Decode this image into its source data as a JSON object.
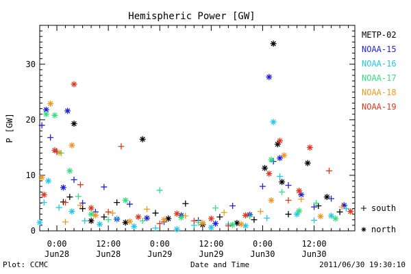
{
  "chart_data": {
    "type": "scatter",
    "title": "Hemispheric Power [GW]",
    "xlabel": "Date and Time",
    "ylabel": "P [GW]",
    "ylim": [
      0,
      37
    ],
    "yticks": [
      0,
      10,
      20,
      30
    ],
    "xlim": [
      "2011-06-27T20:00",
      "2011-06-30T21:30"
    ],
    "xticks": [
      {
        "t": "2011-06-28T00:00",
        "time": "0:00",
        "date": "Jun28"
      },
      {
        "t": "2011-06-28T12:00",
        "time": "12:00",
        "date": "Jun28"
      },
      {
        "t": "2011-06-29T00:00",
        "time": "0:00",
        "date": "Jun29"
      },
      {
        "t": "2011-06-29T12:00",
        "time": "12:00",
        "date": "Jun29"
      },
      {
        "t": "2011-06-30T00:00",
        "time": "0:00",
        "date": "Jun30"
      },
      {
        "t": "2011-06-30T12:00",
        "time": "12:00",
        "date": "Jun30"
      }
    ],
    "legend_placement": "right",
    "markers": [
      {
        "symbol": "+",
        "label": "south"
      },
      {
        "symbol": "*",
        "label": "north"
      }
    ],
    "series": [
      {
        "name": "METP-02",
        "color": "#000000",
        "points": [
          [
            "2011-06-28T01:30",
            5.2,
            "+"
          ],
          [
            "2011-06-28T03:00",
            6.1,
            "+"
          ],
          [
            "2011-06-28T04:00",
            19.3,
            "*"
          ],
          [
            "2011-06-28T06:00",
            4.0,
            "+"
          ],
          [
            "2011-06-28T08:00",
            1.8,
            "*"
          ],
          [
            "2011-06-28T11:00",
            2.5,
            "+"
          ],
          [
            "2011-06-28T14:00",
            5.1,
            "+"
          ],
          [
            "2011-06-28T16:00",
            1.5,
            "*"
          ],
          [
            "2011-06-28T20:00",
            16.5,
            "*"
          ],
          [
            "2011-06-28T23:00",
            3.2,
            "+"
          ],
          [
            "2011-06-29T02:00",
            2.2,
            "*"
          ],
          [
            "2011-06-29T06:00",
            4.9,
            "+"
          ],
          [
            "2011-06-29T10:00",
            1.1,
            "*"
          ],
          [
            "2011-06-29T14:00",
            2.5,
            "+"
          ],
          [
            "2011-06-29T18:00",
            1.4,
            "*"
          ],
          [
            "2011-06-29T22:00",
            2.0,
            "+"
          ],
          [
            "2011-06-30T00:30",
            11.3,
            "*"
          ],
          [
            "2011-06-30T02:30",
            33.7,
            "*"
          ],
          [
            "2011-06-30T03:30",
            15.6,
            "*"
          ],
          [
            "2011-06-30T04:30",
            8.8,
            "*"
          ],
          [
            "2011-06-30T06:00",
            3.0,
            "+"
          ],
          [
            "2011-06-30T10:30",
            12.2,
            "*"
          ],
          [
            "2011-06-30T13:00",
            4.5,
            "+"
          ],
          [
            "2011-06-30T15:00",
            6.1,
            "*"
          ],
          [
            "2011-06-30T18:00",
            3.4,
            "+"
          ]
        ]
      },
      {
        "name": "NOAA-15",
        "color": "#1f1fd8",
        "points": [
          [
            "2011-06-27T20:30",
            19.0,
            "+"
          ],
          [
            "2011-06-27T21:30",
            21.8,
            "*"
          ],
          [
            "2011-06-27T22:30",
            16.8,
            "+"
          ],
          [
            "2011-06-28T00:00",
            14.2,
            "+"
          ],
          [
            "2011-06-28T01:30",
            7.8,
            "*"
          ],
          [
            "2011-06-28T02:30",
            21.6,
            "*"
          ],
          [
            "2011-06-28T04:00",
            9.2,
            "+"
          ],
          [
            "2011-06-28T06:00",
            5.0,
            "+"
          ],
          [
            "2011-06-28T09:00",
            3.4,
            "+"
          ],
          [
            "2011-06-28T11:00",
            7.9,
            "+"
          ],
          [
            "2011-06-28T14:00",
            2.1,
            "*"
          ],
          [
            "2011-06-28T17:00",
            4.8,
            "+"
          ],
          [
            "2011-06-28T21:00",
            2.3,
            "*"
          ],
          [
            "2011-06-29T01:00",
            1.6,
            "+"
          ],
          [
            "2011-06-29T05:00",
            2.8,
            "*"
          ],
          [
            "2011-06-29T09:00",
            1.9,
            "+"
          ],
          [
            "2011-06-29T13:00",
            1.3,
            "*"
          ],
          [
            "2011-06-29T17:00",
            4.5,
            "+"
          ],
          [
            "2011-06-29T21:00",
            2.9,
            "*"
          ],
          [
            "2011-06-30T00:00",
            8.0,
            "+"
          ],
          [
            "2011-06-30T01:30",
            27.7,
            "*"
          ],
          [
            "2011-06-30T02:30",
            12.5,
            "+"
          ],
          [
            "2011-06-30T04:00",
            13.1,
            "*"
          ],
          [
            "2011-06-30T06:00",
            8.2,
            "+"
          ],
          [
            "2011-06-30T09:00",
            6.5,
            "*"
          ],
          [
            "2011-06-30T12:00",
            4.3,
            "+"
          ],
          [
            "2011-06-30T16:00",
            5.8,
            "+"
          ],
          [
            "2011-06-30T19:00",
            4.6,
            "*"
          ]
        ]
      },
      {
        "name": "NOAA-16",
        "color": "#1fc8e8",
        "points": [
          [
            "2011-06-27T20:00",
            1.5,
            "*"
          ],
          [
            "2011-06-27T21:00",
            5.1,
            "+"
          ],
          [
            "2011-06-27T22:00",
            9.0,
            "*"
          ],
          [
            "2011-06-28T00:30",
            4.2,
            "+"
          ],
          [
            "2011-06-28T03:30",
            3.5,
            "*"
          ],
          [
            "2011-06-28T06:30",
            1.8,
            "+"
          ],
          [
            "2011-06-28T10:00",
            1.2,
            "*"
          ],
          [
            "2011-06-28T14:00",
            2.2,
            "+"
          ],
          [
            "2011-06-28T18:00",
            0.8,
            "*"
          ],
          [
            "2011-06-28T23:00",
            0.5,
            "+"
          ],
          [
            "2011-06-29T04:00",
            0.3,
            "*"
          ],
          [
            "2011-06-29T08:00",
            1.0,
            "+"
          ],
          [
            "2011-06-29T12:00",
            0.6,
            "*"
          ],
          [
            "2011-06-29T16:00",
            1.2,
            "+"
          ],
          [
            "2011-06-29T20:00",
            0.9,
            "*"
          ],
          [
            "2011-06-30T01:00",
            2.3,
            "+"
          ],
          [
            "2011-06-30T02:30",
            19.6,
            "*"
          ],
          [
            "2011-06-30T04:00",
            9.8,
            "+"
          ],
          [
            "2011-06-30T08:00",
            3.0,
            "*"
          ],
          [
            "2011-06-30T12:00",
            1.9,
            "+"
          ],
          [
            "2011-06-30T16:00",
            2.7,
            "*"
          ],
          [
            "2011-06-30T19:30",
            4.0,
            "+"
          ]
        ]
      },
      {
        "name": "NOAA-17",
        "color": "#2fe07a",
        "points": [
          [
            "2011-06-27T21:30",
            21.0,
            "*"
          ],
          [
            "2011-06-27T23:30",
            20.8,
            "*"
          ],
          [
            "2011-06-28T01:00",
            14.0,
            "+"
          ],
          [
            "2011-06-28T03:00",
            10.8,
            "*"
          ],
          [
            "2011-06-28T05:00",
            6.2,
            "+"
          ],
          [
            "2011-06-28T08:00",
            3.0,
            "*"
          ],
          [
            "2011-06-28T12:00",
            2.0,
            "+"
          ],
          [
            "2011-06-28T16:00",
            5.5,
            "*"
          ],
          [
            "2011-06-28T20:00",
            1.8,
            "+"
          ],
          [
            "2011-06-29T00:00",
            7.3,
            "+"
          ],
          [
            "2011-06-29T05:00",
            2.4,
            "*"
          ],
          [
            "2011-06-29T09:00",
            1.5,
            "+"
          ],
          [
            "2011-06-29T13:00",
            4.1,
            "+"
          ],
          [
            "2011-06-29T17:00",
            1.1,
            "*"
          ],
          [
            "2011-06-29T21:00",
            2.6,
            "+"
          ],
          [
            "2011-06-30T02:00",
            12.8,
            "*"
          ],
          [
            "2011-06-30T04:30",
            7.0,
            "+"
          ],
          [
            "2011-06-30T08:30",
            3.6,
            "*"
          ],
          [
            "2011-06-30T12:30",
            5.0,
            "+"
          ],
          [
            "2011-06-30T17:00",
            2.2,
            "*"
          ]
        ]
      },
      {
        "name": "NOAA-18",
        "color": "#f0961e",
        "points": [
          [
            "2011-06-27T20:30",
            9.6,
            "*"
          ],
          [
            "2011-06-27T22:30",
            22.9,
            "*"
          ],
          [
            "2011-06-28T00:30",
            14.1,
            "*"
          ],
          [
            "2011-06-28T02:00",
            1.6,
            "+"
          ],
          [
            "2011-06-28T03:30",
            15.4,
            "*"
          ],
          [
            "2011-06-28T05:30",
            4.6,
            "+"
          ],
          [
            "2011-06-28T09:00",
            2.8,
            "*"
          ],
          [
            "2011-06-28T13:00",
            3.2,
            "+"
          ],
          [
            "2011-06-28T17:00",
            1.7,
            "*"
          ],
          [
            "2011-06-28T21:00",
            3.9,
            "+"
          ],
          [
            "2011-06-29T01:00",
            2.0,
            "*"
          ],
          [
            "2011-06-29T06:00",
            2.7,
            "+"
          ],
          [
            "2011-06-29T10:00",
            1.4,
            "*"
          ],
          [
            "2011-06-29T15:00",
            3.3,
            "+"
          ],
          [
            "2011-06-29T19:00",
            1.2,
            "*"
          ],
          [
            "2011-06-29T23:30",
            3.5,
            "+"
          ],
          [
            "2011-06-30T02:00",
            5.5,
            "*"
          ],
          [
            "2011-06-30T05:00",
            13.6,
            "*"
          ],
          [
            "2011-06-30T09:00",
            5.7,
            "+"
          ],
          [
            "2011-06-30T13:30",
            2.6,
            "*"
          ],
          [
            "2011-06-30T18:30",
            4.3,
            "+"
          ]
        ]
      },
      {
        "name": "NOAA-19",
        "color": "#e0361e",
        "points": [
          [
            "2011-06-27T21:00",
            6.5,
            "*"
          ],
          [
            "2011-06-27T23:30",
            14.5,
            "*"
          ],
          [
            "2011-06-28T02:00",
            5.1,
            "+"
          ],
          [
            "2011-06-28T04:00",
            26.4,
            "*"
          ],
          [
            "2011-06-28T05:30",
            8.3,
            "+"
          ],
          [
            "2011-06-28T08:00",
            4.1,
            "*"
          ],
          [
            "2011-06-28T12:00",
            3.4,
            "+"
          ],
          [
            "2011-06-28T15:00",
            15.2,
            "+"
          ],
          [
            "2011-06-28T19:00",
            2.5,
            "*"
          ],
          [
            "2011-06-29T00:00",
            1.3,
            "+"
          ],
          [
            "2011-06-29T04:00",
            3.1,
            "*"
          ],
          [
            "2011-06-29T08:00",
            1.8,
            "+"
          ],
          [
            "2011-06-29T12:00",
            2.2,
            "*"
          ],
          [
            "2011-06-29T16:00",
            0.9,
            "+"
          ],
          [
            "2011-06-29T20:00",
            2.8,
            "*"
          ],
          [
            "2011-06-30T01:30",
            10.3,
            "*"
          ],
          [
            "2011-06-30T04:00",
            16.2,
            "*"
          ],
          [
            "2011-06-30T06:00",
            5.5,
            "+"
          ],
          [
            "2011-06-30T08:30",
            7.2,
            "*"
          ],
          [
            "2011-06-30T11:00",
            15.0,
            "*"
          ],
          [
            "2011-06-30T15:30",
            10.8,
            "+"
          ],
          [
            "2011-06-30T20:30",
            3.5,
            "*"
          ]
        ]
      }
    ]
  },
  "footer": {
    "left": "Plot: CCMC",
    "right": "2011/06/30 19:30:10"
  }
}
